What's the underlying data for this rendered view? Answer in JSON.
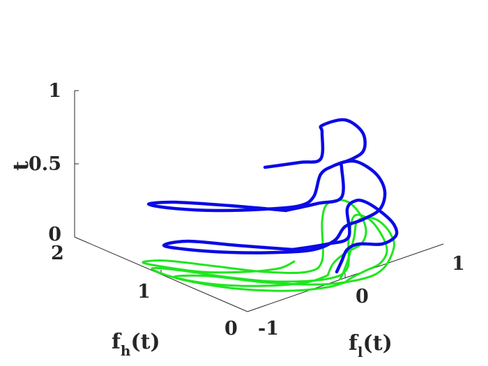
{
  "chart_data": {
    "type": "line3d",
    "title": "",
    "zlabel": "t",
    "xlabel": {
      "text": "f",
      "sub": "h",
      "suffix": "(t)"
    },
    "ylabel": {
      "text": "f",
      "sub": "l",
      "suffix": "(t)"
    },
    "xlim": [
      0,
      2
    ],
    "ylim": [
      -1,
      1
    ],
    "zlim": [
      0,
      1
    ],
    "xticks": [
      "0",
      "1",
      "2"
    ],
    "yticks": [
      "-1",
      "0",
      "1"
    ],
    "zticks": [
      "0",
      "0.5",
      "1"
    ],
    "grid": false,
    "colors": {
      "trajectory": "#0a0ae6",
      "projection": "#1ee61e"
    },
    "series": [
      {
        "kind": "trajectory",
        "t": 1.0
      },
      {
        "kind": "trajectory",
        "t": 0.7
      },
      {
        "kind": "trajectory",
        "t": 0.45
      },
      {
        "kind": "trajectory",
        "t": 0.15
      },
      {
        "kind": "projection",
        "t": 1.0
      },
      {
        "kind": "projection",
        "t": 0.7
      },
      {
        "kind": "projection",
        "t": 0.45
      },
      {
        "kind": "projection",
        "t": 0.15
      }
    ]
  }
}
